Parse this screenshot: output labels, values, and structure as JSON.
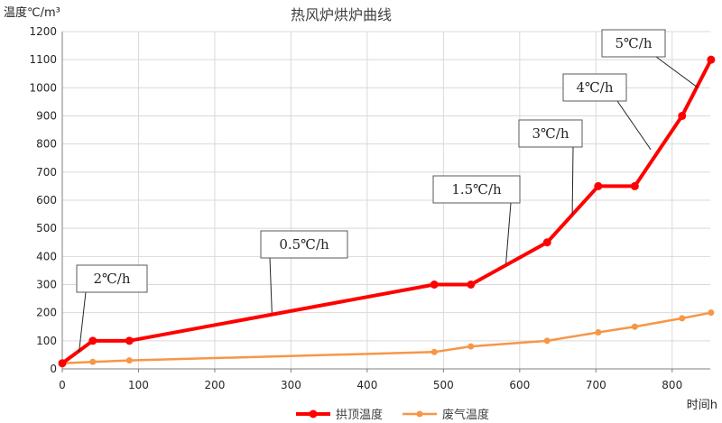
{
  "chart_data": {
    "type": "line",
    "title": "热风炉烘炉曲线",
    "ylabel": "温度℃/m³",
    "xlabel": "时间h",
    "xlim": [
      0,
      850
    ],
    "ylim": [
      0,
      1200
    ],
    "x_ticks": [
      0,
      100,
      200,
      300,
      400,
      500,
      600,
      700,
      800
    ],
    "y_ticks": [
      0,
      100,
      200,
      300,
      400,
      500,
      600,
      700,
      800,
      900,
      1000,
      1100,
      1200
    ],
    "grid": true,
    "legend_position": "bottom",
    "series": [
      {
        "name": "拱顶温度",
        "color": "#ff0000",
        "points": [
          [
            0,
            20
          ],
          [
            40,
            100
          ],
          [
            88,
            100
          ],
          [
            488,
            300
          ],
          [
            536,
            300
          ],
          [
            636,
            450
          ],
          [
            703,
            650
          ],
          [
            751,
            650
          ],
          [
            813,
            900
          ],
          [
            851,
            1100
          ]
        ]
      },
      {
        "name": "废气温度",
        "color": "#f79646",
        "points": [
          [
            0,
            20
          ],
          [
            40,
            25
          ],
          [
            88,
            30
          ],
          [
            488,
            60
          ],
          [
            536,
            80
          ],
          [
            636,
            100
          ],
          [
            703,
            130
          ],
          [
            751,
            150
          ],
          [
            813,
            180
          ],
          [
            851,
            200
          ]
        ]
      }
    ],
    "annotations": [
      {
        "text": "2℃/h",
        "point": [
          22,
          60
        ]
      },
      {
        "text": "0.5℃/h",
        "point": [
          275,
          200
        ]
      },
      {
        "text": "1.5℃/h",
        "point": [
          582,
          375
        ]
      },
      {
        "text": "3℃/h",
        "point": [
          669,
          550
        ]
      },
      {
        "text": "4℃/h",
        "point": [
          772,
          780
        ]
      },
      {
        "text": "5℃/h",
        "point": [
          834,
          1000
        ]
      }
    ]
  }
}
